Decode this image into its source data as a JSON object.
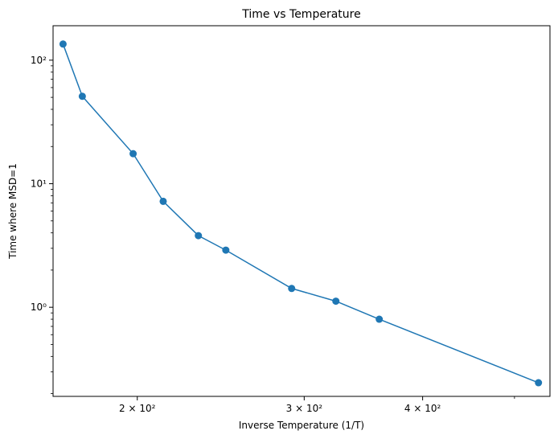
{
  "chart_data": {
    "type": "line",
    "title": "Time vs Temperature",
    "xlabel": "Inverse Temperature (1/T)",
    "ylabel": "Time where MSD=1",
    "xscale": "log",
    "yscale": "log",
    "xlim": [
      163,
      545
    ],
    "ylim": [
      0.19,
      190
    ],
    "x_major_ticks": [
      {
        "value": 200,
        "label": "2 × 10²"
      },
      {
        "value": 300,
        "label": "3 × 10²"
      },
      {
        "value": 400,
        "label": "4 × 10²"
      }
    ],
    "x_minor_ticks": [
      500
    ],
    "y_major_ticks": [
      {
        "value": 1,
        "label": "10⁰"
      },
      {
        "value": 10,
        "label": "10¹"
      },
      {
        "value": 100,
        "label": "10²"
      }
    ],
    "y_minor_ticks": [
      0.2,
      0.3,
      0.4,
      0.5,
      0.6,
      0.7,
      0.8,
      0.9,
      2,
      3,
      4,
      5,
      6,
      7,
      8,
      9,
      20,
      30,
      40,
      50,
      60,
      70,
      80,
      90
    ],
    "grid": false,
    "marker": "circle",
    "color": "#1f77b4",
    "series": [
      {
        "x": [
          167,
          175,
          198,
          213,
          232,
          248,
          291,
          324,
          360,
          530
        ],
        "y": [
          135,
          51,
          17.5,
          7.2,
          3.8,
          2.9,
          1.42,
          1.12,
          0.8,
          0.245
        ]
      }
    ]
  }
}
